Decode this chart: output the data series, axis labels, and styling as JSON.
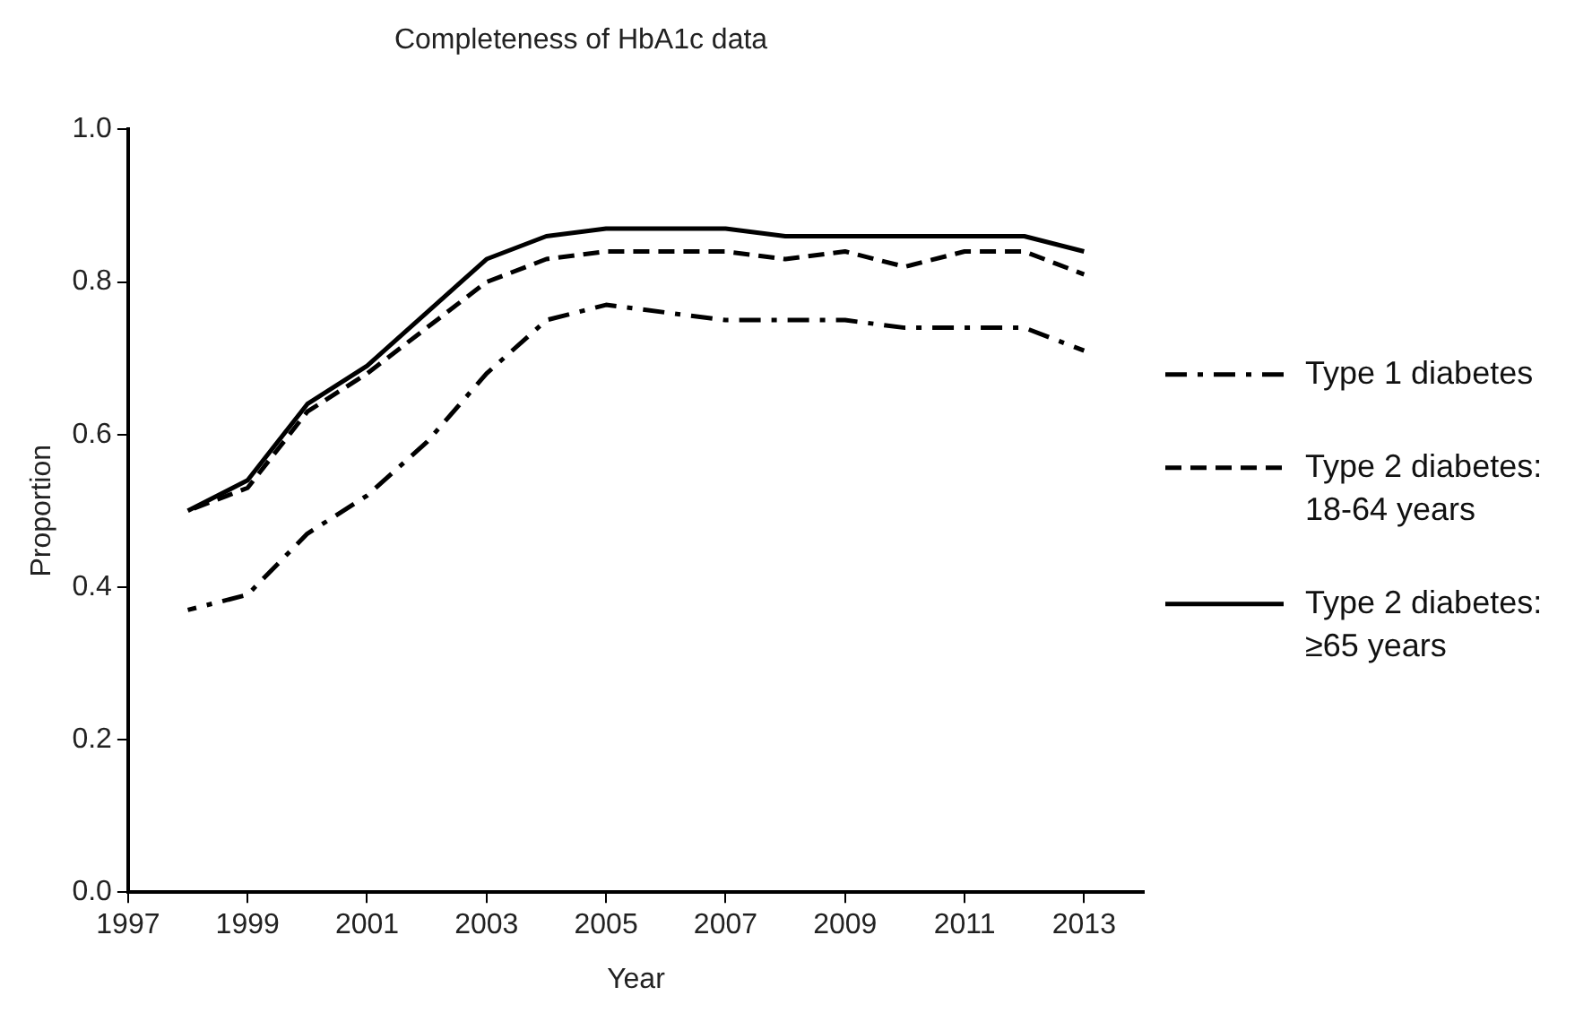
{
  "chart_data": {
    "type": "line",
    "title": "Completeness of HbA1c data",
    "xlabel": "Year",
    "ylabel": "Proportion",
    "x": [
      1998,
      1999,
      2000,
      2001,
      2002,
      2003,
      2004,
      2005,
      2006,
      2007,
      2008,
      2009,
      2010,
      2011,
      2012,
      2013
    ],
    "xlim": [
      1997,
      2014
    ],
    "xticks": [
      1997,
      1999,
      2001,
      2003,
      2005,
      2007,
      2009,
      2011,
      2013
    ],
    "ylim": [
      0,
      1
    ],
    "yticks": [
      {
        "value": 0,
        "label": "0.0"
      },
      {
        "value": 0.2,
        "label": "0.2"
      },
      {
        "value": 0.4,
        "label": "0.4"
      },
      {
        "value": 0.6,
        "label": "0.6"
      },
      {
        "value": 0.8,
        "label": "0.8"
      },
      {
        "value": 1,
        "label": "1.0"
      }
    ],
    "grid": false,
    "legend": "right",
    "marker": "none",
    "series": [
      {
        "name": "Type 1 diabetes",
        "color": "#000000",
        "line_style": "dashdot",
        "values": [
          0.37,
          0.39,
          0.47,
          0.52,
          0.59,
          0.68,
          0.75,
          0.77,
          0.76,
          0.75,
          0.75,
          0.75,
          0.74,
          0.74,
          0.74,
          0.71
        ]
      },
      {
        "name": "Type 2 diabetes: 18-64 years",
        "color": "#000000",
        "line_style": "dashed",
        "values": [
          0.5,
          0.53,
          0.63,
          0.68,
          0.74,
          0.8,
          0.83,
          0.84,
          0.84,
          0.84,
          0.83,
          0.84,
          0.82,
          0.84,
          0.84,
          0.81
        ]
      },
      {
        "name": "Type 2 diabetes: ≥65 years",
        "color": "#000000",
        "line_style": "solid",
        "values": [
          0.5,
          0.54,
          0.64,
          0.69,
          0.76,
          0.83,
          0.86,
          0.87,
          0.87,
          0.87,
          0.86,
          0.86,
          0.86,
          0.86,
          0.86,
          0.84
        ]
      }
    ]
  }
}
